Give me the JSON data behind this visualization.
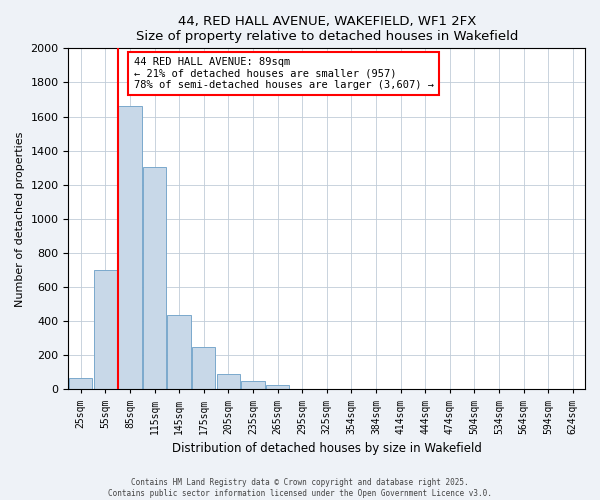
{
  "title": "44, RED HALL AVENUE, WAKEFIELD, WF1 2FX",
  "subtitle": "Size of property relative to detached houses in Wakefield",
  "xlabel": "Distribution of detached houses by size in Wakefield",
  "ylabel": "Number of detached properties",
  "bin_labels": [
    "25sqm",
    "55sqm",
    "85sqm",
    "115sqm",
    "145sqm",
    "175sqm",
    "205sqm",
    "235sqm",
    "265sqm",
    "295sqm",
    "325sqm",
    "354sqm",
    "384sqm",
    "414sqm",
    "444sqm",
    "474sqm",
    "504sqm",
    "534sqm",
    "564sqm",
    "594sqm",
    "624sqm"
  ],
  "bar_values": [
    65,
    700,
    1660,
    1305,
    435,
    250,
    88,
    50,
    25,
    0,
    0,
    0,
    0,
    0,
    0,
    0,
    0,
    0,
    0,
    0,
    0
  ],
  "bar_color": "#c8d8e8",
  "bar_edge_color": "#7aa8cc",
  "red_line_bin": 2,
  "ylim": [
    0,
    2000
  ],
  "yticks": [
    0,
    200,
    400,
    600,
    800,
    1000,
    1200,
    1400,
    1600,
    1800,
    2000
  ],
  "annotation_title": "44 RED HALL AVENUE: 89sqm",
  "annotation_line1": "← 21% of detached houses are smaller (957)",
  "annotation_line2": "78% of semi-detached houses are larger (3,607) →",
  "footer_line1": "Contains HM Land Registry data © Crown copyright and database right 2025.",
  "footer_line2": "Contains public sector information licensed under the Open Government Licence v3.0.",
  "bg_color": "#eef2f7",
  "plot_bg_color": "#ffffff",
  "grid_color": "#c0ccd8"
}
